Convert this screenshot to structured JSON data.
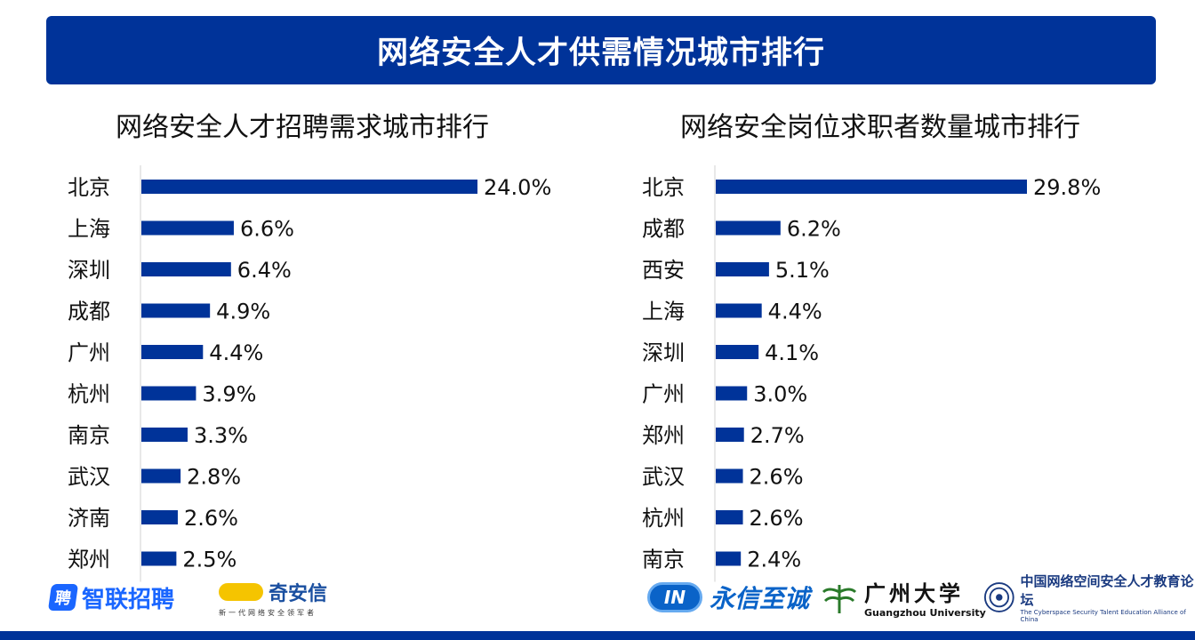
{
  "header": {
    "title": "网络安全人才供需情况城市排行"
  },
  "chart_data": [
    {
      "type": "bar",
      "orientation": "horizontal",
      "title": "网络安全人才招聘需求城市排行",
      "categories": [
        "北京",
        "上海",
        "深圳",
        "成都",
        "广州",
        "杭州",
        "南京",
        "武汉",
        "济南",
        "郑州"
      ],
      "values": [
        24.0,
        6.6,
        6.4,
        4.9,
        4.4,
        3.9,
        3.3,
        2.8,
        2.6,
        2.5
      ],
      "value_labels": [
        "24.0%",
        "6.6%",
        "6.4%",
        "4.9%",
        "4.4%",
        "3.9%",
        "3.3%",
        "2.8%",
        "2.6%",
        "2.5%"
      ],
      "unit": "%",
      "color": "#003399",
      "grid": false
    },
    {
      "type": "bar",
      "orientation": "horizontal",
      "title": "网络安全岗位求职者数量城市排行",
      "categories": [
        "北京",
        "成都",
        "西安",
        "上海",
        "深圳",
        "广州",
        "郑州",
        "武汉",
        "杭州",
        "南京"
      ],
      "values": [
        29.8,
        6.2,
        5.1,
        4.4,
        4.1,
        3.0,
        2.7,
        2.6,
        2.6,
        2.4
      ],
      "value_labels": [
        "29.8%",
        "6.2%",
        "5.1%",
        "4.4%",
        "4.1%",
        "3.0%",
        "2.7%",
        "2.6%",
        "2.6%",
        "2.4%"
      ],
      "unit": "%",
      "color": "#003399",
      "grid": false
    }
  ],
  "logos": {
    "zhaopin": {
      "mark": "聘",
      "text": "智联招聘"
    },
    "qianxin": {
      "text": "奇安信",
      "sub": "新一代网络安全领军者"
    },
    "yongxin": {
      "mark": "IN",
      "text": "永信至诚"
    },
    "gzhu": {
      "text": "广州大学",
      "sub": "Guangzhou University"
    },
    "alliance": {
      "text": "中国网络空间安全人才教育论坛",
      "sub": "The Cyberspace Security Talent Education Alliance of China"
    }
  },
  "colors": {
    "brand": "#003399",
    "bar": "#003399"
  }
}
